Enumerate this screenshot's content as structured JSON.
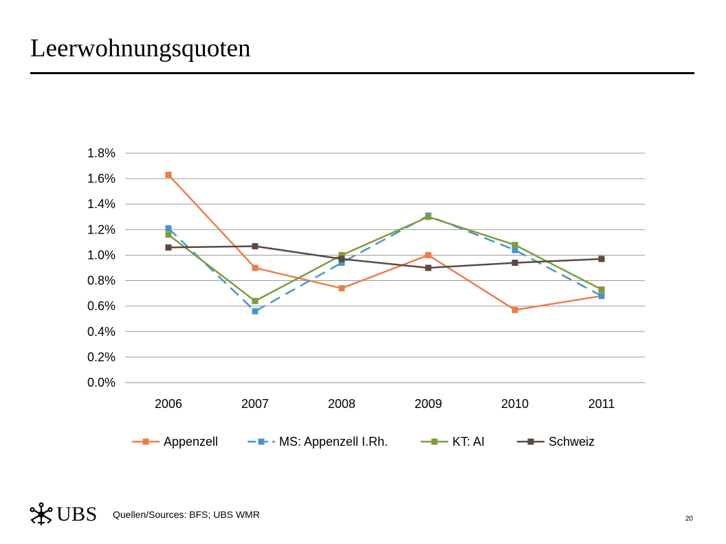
{
  "slide": {
    "title": "Leerwohnungsquoten",
    "sources": "Quellen/Sources: BFS; UBS WMR",
    "page_number": "20",
    "logo_text": "UBS"
  },
  "chart_data": {
    "type": "line",
    "title": "",
    "xlabel": "",
    "ylabel": "",
    "categories": [
      "2006",
      "2007",
      "2008",
      "2009",
      "2010",
      "2011"
    ],
    "y_ticks": [
      "0.0%",
      "0.2%",
      "0.4%",
      "0.6%",
      "0.8%",
      "1.0%",
      "1.2%",
      "1.4%",
      "1.6%",
      "1.8%"
    ],
    "ylim": [
      0,
      0.018
    ],
    "grid": true,
    "legend_position": "bottom",
    "series": [
      {
        "name": "Appenzell",
        "color": "#ee7d45",
        "dashed": false,
        "values": [
          0.0163,
          0.009,
          0.0074,
          0.01,
          0.0057,
          0.0068
        ]
      },
      {
        "name": "MS: Appenzell I.Rh.",
        "color": "#4a95c3",
        "dashed": true,
        "values": [
          0.0121,
          0.0056,
          0.0094,
          0.0131,
          0.0104,
          0.0068
        ]
      },
      {
        "name": "KT: AI",
        "color": "#7f9b3c",
        "dashed": false,
        "values": [
          0.0116,
          0.0064,
          0.01,
          0.013,
          0.0108,
          0.0073
        ]
      },
      {
        "name": "Schweiz",
        "color": "#5a4a42",
        "dashed": false,
        "values": [
          0.0106,
          0.0107,
          0.0097,
          0.009,
          0.0094,
          0.0097
        ]
      }
    ]
  }
}
